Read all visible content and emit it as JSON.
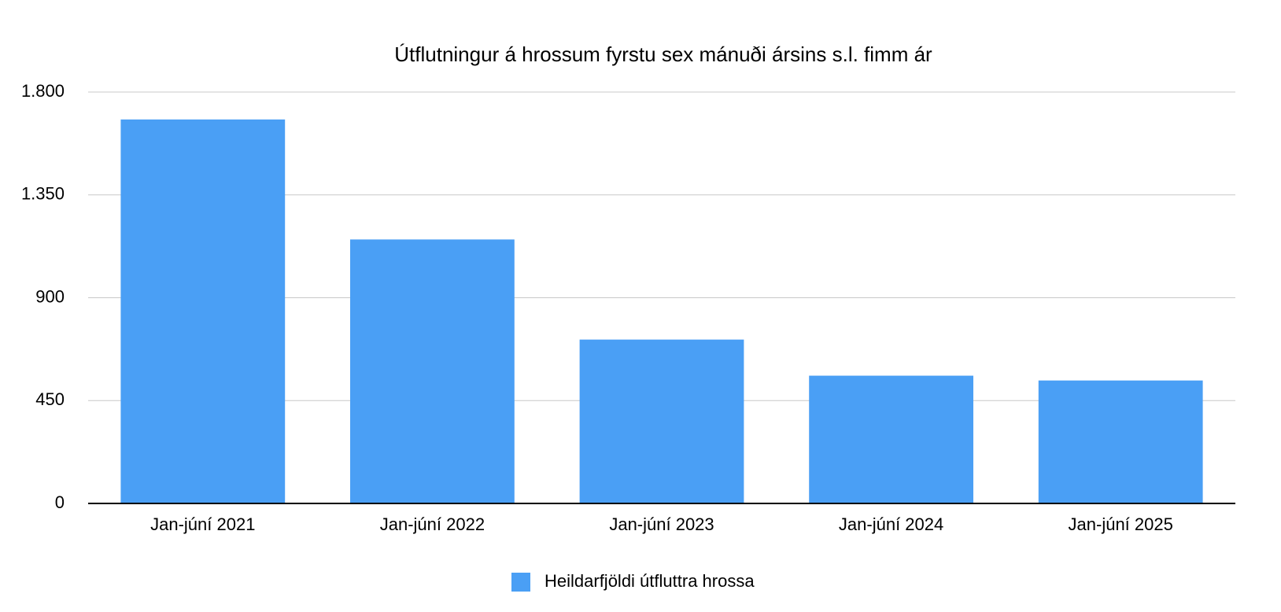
{
  "chart_data": {
    "type": "bar",
    "title": "Útflutningur á hrossum fyrstu sex mánuði ársins s.l. fimm ár",
    "categories": [
      "Jan-júní 2021",
      "Jan-júní 2022",
      "Jan-júní 2023",
      "Jan-júní 2024",
      "Jan-júní 2025"
    ],
    "series": [
      {
        "name": "Heildarfjöldi útfluttra hrossa",
        "color": "#4a9ff5",
        "values": [
          1680,
          1155,
          717,
          559,
          538
        ]
      }
    ],
    "ylim": [
      0,
      1800
    ],
    "yticks": [
      0,
      450,
      900,
      {
        "value": 1350,
        "label": "1.350"
      },
      {
        "value": 1800,
        "label": "1.800"
      }
    ],
    "grid": true,
    "legend": "bottom"
  }
}
